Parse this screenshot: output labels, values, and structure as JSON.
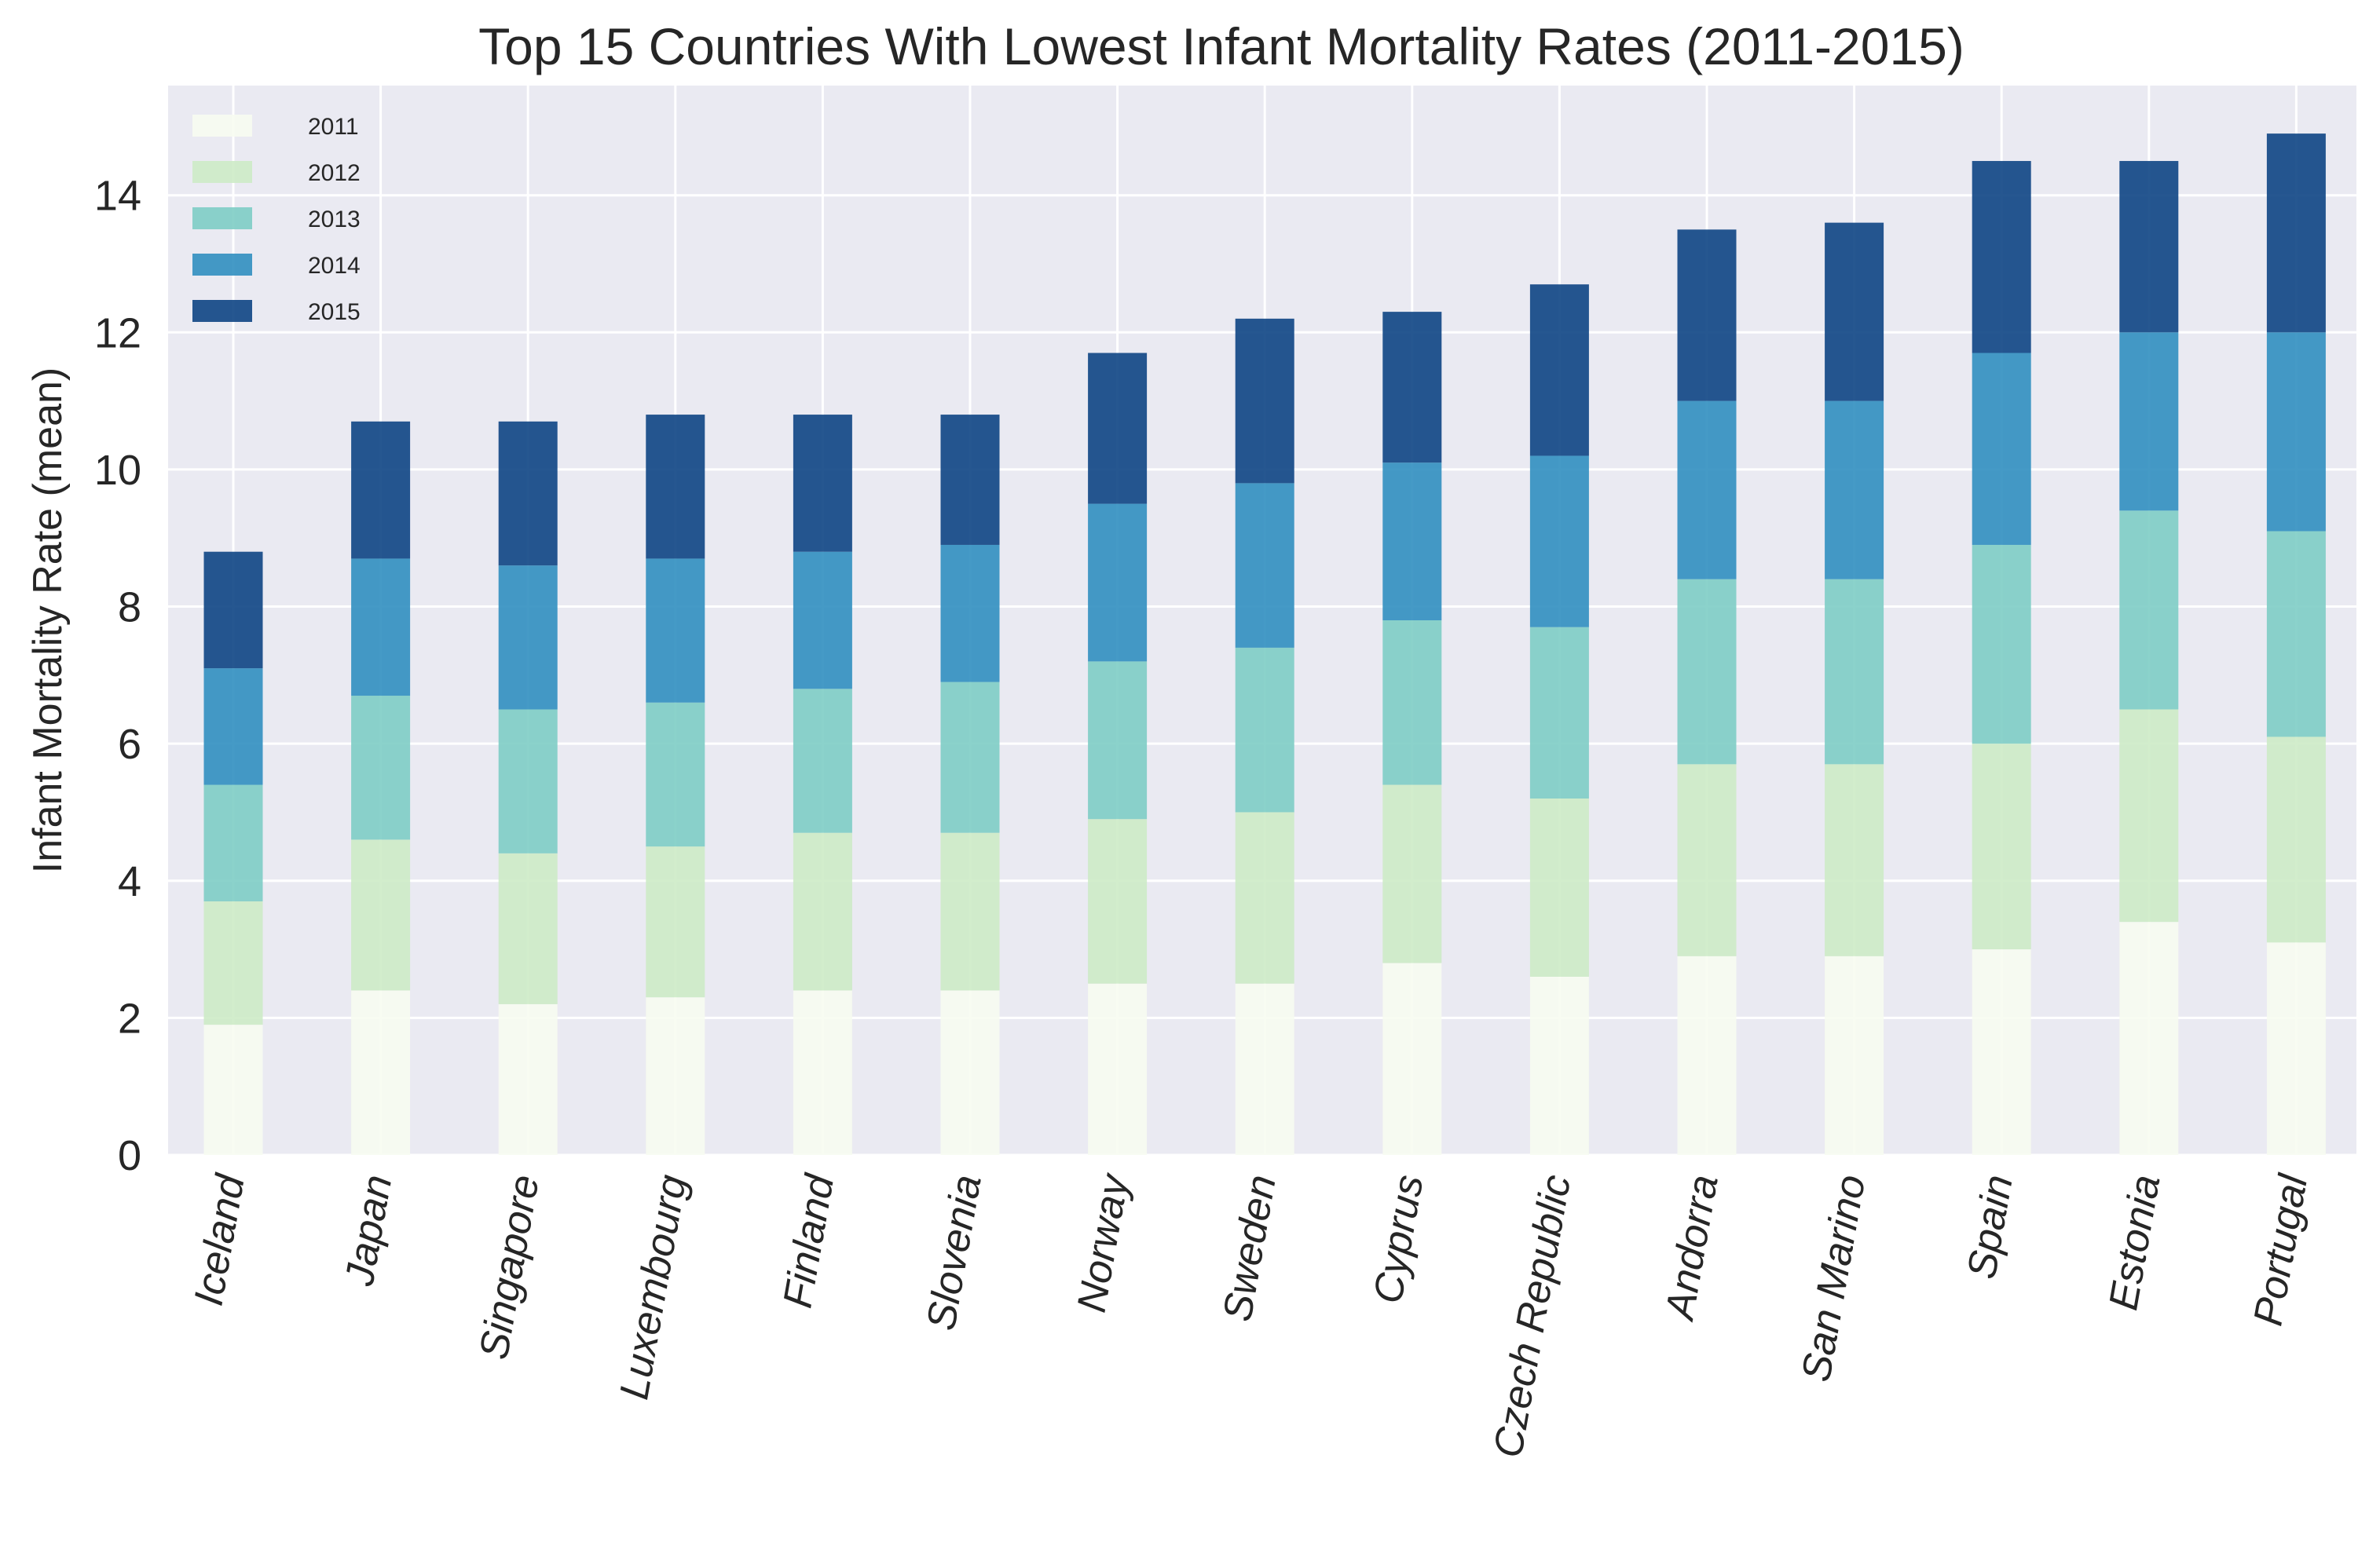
{
  "chart_data": {
    "type": "bar",
    "stacked": true,
    "title": "Top 15 Countries With Lowest Infant Mortality Rates (2011-2015)",
    "xlabel": "",
    "ylabel": "Infant Mortality Rate (mean)",
    "ylim": [
      0,
      15.6
    ],
    "yticks": [
      "0",
      "2",
      "4",
      "6",
      "8",
      "10",
      "12",
      "14"
    ],
    "grid": true,
    "legend_position": "top-left",
    "categories": [
      "Iceland",
      "Japan",
      "Singapore",
      "Luxembourg",
      "Finland",
      "Slovenia",
      "Norway",
      "Sweden",
      "Cyprus",
      "Czech Republic",
      "Andorra",
      "San Marino",
      "Spain",
      "Estonia",
      "Portugal"
    ],
    "series": [
      {
        "name": "2011",
        "color": "#f7fcf0",
        "values": [
          1.9,
          2.4,
          2.2,
          2.3,
          2.4,
          2.4,
          2.5,
          2.5,
          2.8,
          2.6,
          2.9,
          2.9,
          3.0,
          3.4,
          3.1
        ]
      },
      {
        "name": "2012",
        "color": "#ccebc5",
        "values": [
          1.8,
          2.2,
          2.2,
          2.2,
          2.3,
          2.3,
          2.4,
          2.5,
          2.6,
          2.6,
          2.8,
          2.8,
          3.0,
          3.1,
          3.0
        ]
      },
      {
        "name": "2013",
        "color": "#7bccc4",
        "values": [
          1.7,
          2.1,
          2.1,
          2.1,
          2.1,
          2.2,
          2.3,
          2.4,
          2.4,
          2.5,
          2.7,
          2.7,
          2.9,
          2.9,
          3.0
        ]
      },
      {
        "name": "2014",
        "color": "#2b8cbe",
        "values": [
          1.7,
          2.0,
          2.1,
          2.1,
          2.0,
          2.0,
          2.3,
          2.4,
          2.3,
          2.5,
          2.6,
          2.6,
          2.8,
          2.6,
          2.9
        ]
      },
      {
        "name": "2015",
        "color": "#084081",
        "values": [
          1.7,
          2.0,
          2.1,
          2.1,
          2.0,
          1.9,
          2.2,
          2.4,
          2.2,
          2.5,
          2.5,
          2.6,
          2.8,
          2.5,
          2.9
        ]
      }
    ]
  }
}
